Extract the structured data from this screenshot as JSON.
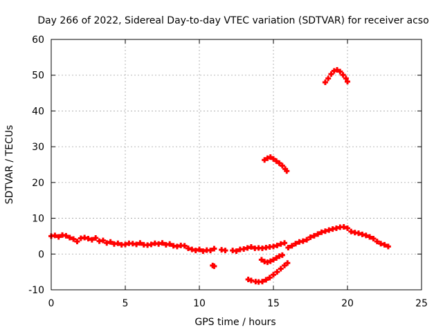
{
  "chart_data": {
    "type": "scatter",
    "title": "Day 266 of 2022, Sidereal Day-to-day VTEC variation (SDTVAR) for receiver acso",
    "xlabel": "GPS time / hours",
    "ylabel": "SDTVAR / TECUs",
    "xlim": [
      0,
      25
    ],
    "ylim": [
      -10,
      60
    ],
    "xticks": [
      0,
      5,
      10,
      15,
      20,
      25
    ],
    "yticks": [
      -10,
      0,
      10,
      20,
      30,
      40,
      50,
      60
    ],
    "xtick_labels": [
      "0",
      "5",
      "10",
      "15",
      "20",
      "25"
    ],
    "ytick_labels": [
      "-10",
      "0",
      "10",
      "20",
      "30",
      "40",
      "50",
      "60"
    ],
    "grid": true,
    "legend": "none",
    "marker": "plus",
    "series": [
      {
        "name": "SDTVAR",
        "color": "#ff0000",
        "x": [
          0,
          0.25,
          0.5,
          0.75,
          1.0,
          1.25,
          1.5,
          1.75,
          2.0,
          2.25,
          2.5,
          2.75,
          3.0,
          3.25,
          3.5,
          3.75,
          4.0,
          4.25,
          4.5,
          4.75,
          5.0,
          5.25,
          5.5,
          5.75,
          6.0,
          6.25,
          6.5,
          6.75,
          7.0,
          7.25,
          7.5,
          7.75,
          8.0,
          8.25,
          8.5,
          8.75,
          9.0,
          9.25,
          9.5,
          9.75,
          10.0,
          10.25,
          10.5,
          10.75,
          11.0,
          11.5,
          11.75,
          12.25,
          12.5,
          12.75,
          13.0,
          13.25,
          13.5,
          13.75,
          14.0,
          14.25,
          14.5,
          14.75,
          15.0,
          15.25,
          15.5,
          15.75,
          16.0,
          16.25,
          16.5,
          16.75,
          17.0,
          17.25,
          17.5,
          17.75,
          18.0,
          18.25,
          18.5,
          18.75,
          19.0,
          19.25,
          19.5,
          19.75,
          20.0,
          20.25,
          20.5,
          20.75,
          21.0,
          21.25,
          21.5,
          21.75,
          22.0,
          22.25,
          22.5,
          22.75,
          10.9,
          11.0,
          14.4,
          14.6,
          14.8,
          15.0,
          15.2,
          15.4,
          15.6,
          15.8,
          15.9,
          13.3,
          13.5,
          13.8,
          14.0,
          14.25,
          14.5,
          14.75,
          15.0,
          15.25,
          15.5,
          15.75,
          15.95,
          14.2,
          14.4,
          14.6,
          14.8,
          15.0,
          15.2,
          15.4,
          15.6,
          18.5,
          18.7,
          18.9,
          19.1,
          19.3,
          19.5,
          19.7,
          19.9,
          20.0
        ],
        "y": [
          5,
          5.2,
          4.8,
          5.3,
          5.1,
          4.6,
          4.2,
          3.5,
          4.4,
          4.6,
          4.3,
          4.0,
          4.5,
          3.6,
          3.8,
          3.1,
          3.4,
          2.8,
          3.0,
          2.6,
          2.7,
          3.0,
          2.9,
          2.7,
          3.1,
          2.6,
          2.5,
          2.7,
          3.0,
          2.8,
          3.1,
          2.6,
          2.8,
          2.3,
          2.1,
          2.4,
          2.3,
          1.6,
          1.3,
          1.0,
          1.3,
          0.8,
          1.1,
          1.0,
          1.5,
          1.2,
          1.0,
          1.0,
          0.8,
          1.3,
          1.4,
          1.7,
          2.0,
          1.6,
          1.7,
          1.6,
          1.8,
          2.0,
          2.1,
          2.4,
          2.8,
          3.1,
          1.8,
          2.3,
          2.9,
          3.4,
          3.6,
          4.0,
          4.7,
          5.1,
          5.6,
          6.1,
          6.4,
          6.7,
          7.0,
          7.2,
          7.5,
          7.6,
          7.2,
          6.3,
          6.0,
          5.8,
          5.5,
          5.2,
          4.8,
          4.3,
          3.5,
          2.9,
          2.6,
          2.1,
          -3.2,
          -3.4,
          26.3,
          26.8,
          27.1,
          26.6,
          26.0,
          25.4,
          24.7,
          23.8,
          23.2,
          -7.1,
          -7.4,
          -7.7,
          -7.8,
          -7.7,
          -7.2,
          -6.6,
          -5.8,
          -5.0,
          -4.1,
          -3.2,
          -2.5,
          -1.6,
          -2.1,
          -2.3,
          -2.0,
          -1.6,
          -1.1,
          -0.6,
          -0.3,
          48.0,
          49.1,
          50.3,
          51.2,
          51.5,
          51.0,
          50.1,
          49.1,
          48.2
        ]
      }
    ]
  }
}
